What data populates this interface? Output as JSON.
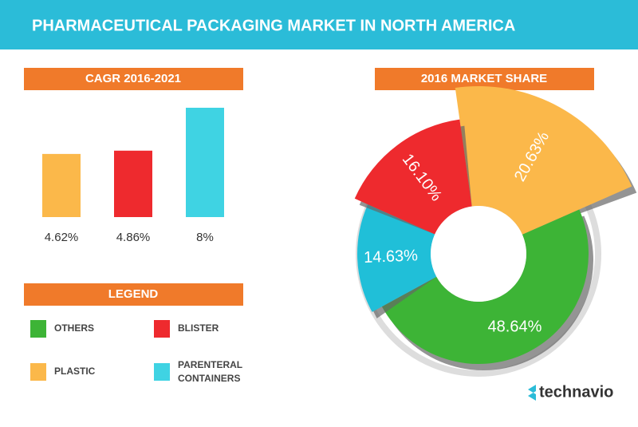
{
  "header": {
    "title": "PHARMACEUTICAL PACKAGING MARKET IN NORTH AMERICA"
  },
  "chart_data": [
    {
      "type": "bar",
      "title": "CAGR 2016-2021",
      "categories": [
        null,
        null,
        null
      ],
      "values": [
        4.62,
        4.86,
        8
      ],
      "value_labels": [
        "4.62%",
        "4.86%",
        "8%"
      ],
      "colors": [
        "#fbb84a",
        "#ee2a2e",
        "#3fd3e3"
      ]
    },
    {
      "type": "pie",
      "title": "2016 MARKET SHARE",
      "values": [
        20.63,
        48.64,
        14.63,
        16.1
      ],
      "value_labels": [
        "20.63%",
        "48.64%",
        "14.63%",
        "16.10%"
      ],
      "colors": [
        "#fbb84a",
        "#3db436",
        "#20bfd8",
        "#ee2a2e"
      ]
    }
  ],
  "legend": {
    "title": "LEGEND",
    "items": [
      {
        "label": "OTHERS",
        "color": "#3db436"
      },
      {
        "label": "BLISTER",
        "color": "#ee2a2e"
      },
      {
        "label": "PLASTIC",
        "color": "#fbb84a"
      },
      {
        "label": "PARENTERAL CONTAINERS",
        "color": "#3fd3e3"
      }
    ]
  },
  "logo": "technavio"
}
